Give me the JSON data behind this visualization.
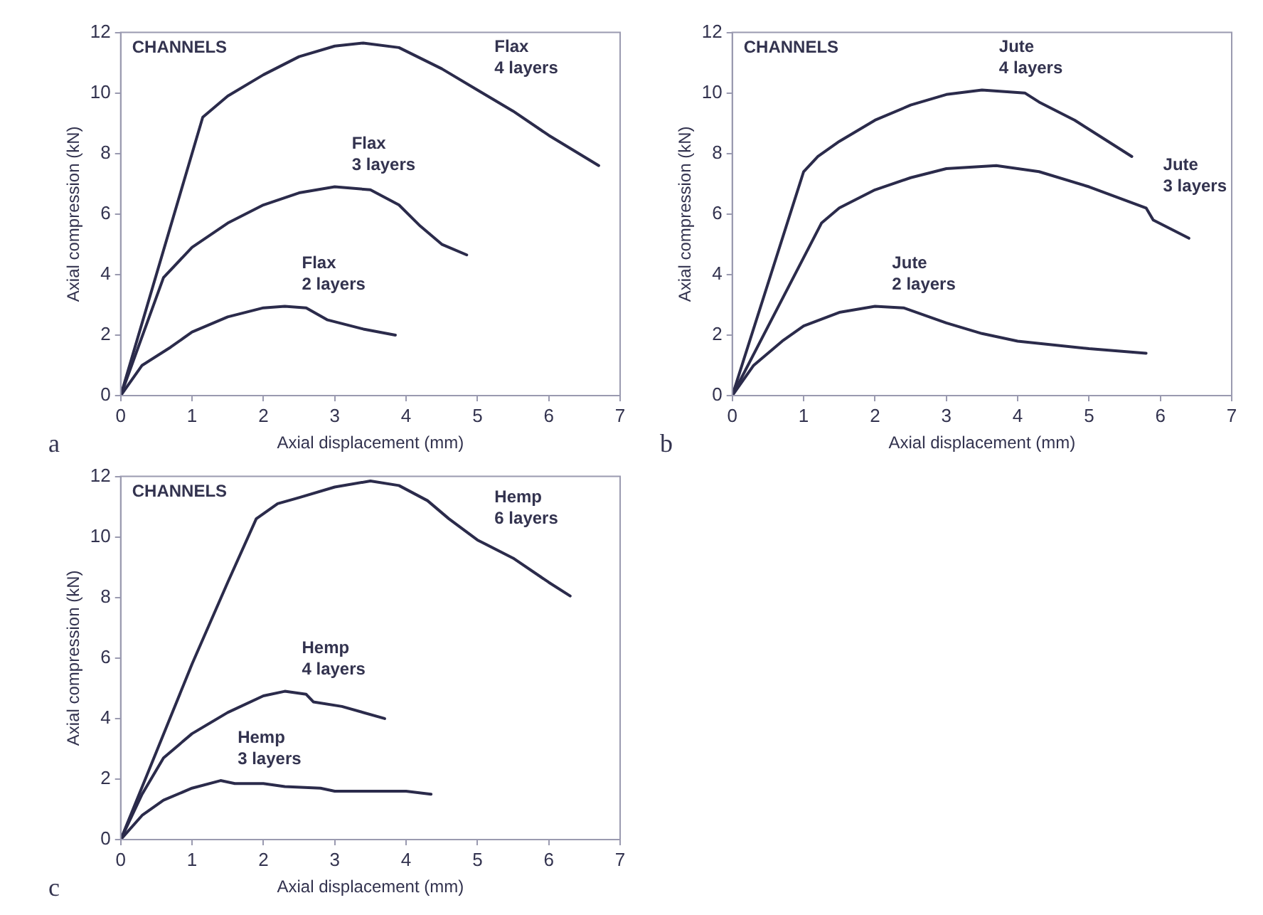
{
  "chart_data": [
    {
      "type": "line",
      "xlabel": "Axial displacement (mm)",
      "ylabel": "Axial compression (kN)",
      "xlim": [
        0,
        7
      ],
      "ylim": [
        0,
        12
      ],
      "xticks": [
        0,
        1,
        2,
        3,
        4,
        5,
        6,
        7
      ],
      "yticks": [
        0,
        2,
        4,
        6,
        8,
        10,
        12
      ],
      "grid": false,
      "legend": false,
      "marker": "none",
      "line_style": "solid",
      "annotations": [
        "CHANNELS",
        "a"
      ],
      "series": [
        {
          "name": "Flax 4 layers",
          "color": "#2b2b4b",
          "x": [
            0,
            1.15,
            1.5,
            2,
            2.5,
            3,
            3.4,
            3.9,
            4.5,
            5,
            5.5,
            6,
            6.7
          ],
          "values": [
            0,
            9.2,
            9.9,
            10.6,
            11.2,
            11.55,
            11.65,
            11.5,
            10.8,
            10.1,
            9.4,
            8.6,
            7.6
          ]
        },
        {
          "name": "Flax 3 layers",
          "color": "#2b2b4b",
          "x": [
            0,
            0.6,
            1,
            1.5,
            2,
            2.5,
            3,
            3.5,
            3.9,
            4.2,
            4.5,
            4.85
          ],
          "values": [
            0,
            3.9,
            4.9,
            5.7,
            6.3,
            6.7,
            6.9,
            6.8,
            6.3,
            5.6,
            5.0,
            4.65
          ]
        },
        {
          "name": "Flax 2 layers",
          "color": "#2b2b4b",
          "x": [
            0,
            0.3,
            0.7,
            1,
            1.5,
            2,
            2.3,
            2.6,
            2.9,
            3.4,
            3.85
          ],
          "values": [
            0,
            1.0,
            1.6,
            2.1,
            2.6,
            2.9,
            2.95,
            2.9,
            2.5,
            2.2,
            2.0
          ]
        }
      ]
    },
    {
      "type": "line",
      "xlabel": "Axial displacement (mm)",
      "ylabel": "Axial compression (kN)",
      "xlim": [
        0,
        7
      ],
      "ylim": [
        0,
        12
      ],
      "xticks": [
        0,
        1,
        2,
        3,
        4,
        5,
        6,
        7
      ],
      "yticks": [
        0,
        2,
        4,
        6,
        8,
        10,
        12
      ],
      "grid": false,
      "legend": false,
      "marker": "none",
      "line_style": "solid",
      "annotations": [
        "CHANNELS",
        "b"
      ],
      "series": [
        {
          "name": "Jute 4 layers",
          "color": "#2b2b4b",
          "x": [
            0,
            1,
            1.2,
            1.5,
            2,
            2.5,
            3,
            3.5,
            4.1,
            4.3,
            4.8,
            5.2,
            5.6
          ],
          "values": [
            0,
            7.4,
            7.9,
            8.4,
            9.1,
            9.6,
            9.95,
            10.1,
            10.0,
            9.7,
            9.1,
            8.5,
            7.9
          ]
        },
        {
          "name": "Jute 3 layers",
          "color": "#2b2b4b",
          "x": [
            0,
            1.25,
            1.5,
            2,
            2.5,
            3,
            3.7,
            4.3,
            5,
            5.8,
            5.9,
            6.4
          ],
          "values": [
            0,
            5.7,
            6.2,
            6.8,
            7.2,
            7.5,
            7.6,
            7.4,
            6.9,
            6.2,
            5.8,
            5.2
          ]
        },
        {
          "name": "Jute 2 layers",
          "color": "#2b2b4b",
          "x": [
            0,
            0.3,
            0.7,
            1,
            1.5,
            2,
            2.4,
            3,
            3.5,
            4,
            5,
            5.8
          ],
          "values": [
            0,
            1.0,
            1.8,
            2.3,
            2.75,
            2.95,
            2.9,
            2.4,
            2.05,
            1.8,
            1.55,
            1.4
          ]
        }
      ]
    },
    {
      "type": "line",
      "xlabel": "Axial displacement (mm)",
      "ylabel": "Axial compression (kN)",
      "xlim": [
        0,
        7
      ],
      "ylim": [
        0,
        12
      ],
      "xticks": [
        0,
        1,
        2,
        3,
        4,
        5,
        6,
        7
      ],
      "yticks": [
        0,
        2,
        4,
        6,
        8,
        10,
        12
      ],
      "grid": false,
      "legend": false,
      "marker": "none",
      "line_style": "solid",
      "annotations": [
        "CHANNELS",
        "c"
      ],
      "series": [
        {
          "name": "Hemp 6 layers",
          "color": "#2b2b4b",
          "x": [
            0,
            0.5,
            1,
            1.5,
            1.9,
            2.2,
            2.5,
            3,
            3.5,
            3.9,
            4.3,
            4.6,
            5,
            5.5,
            6,
            6.3
          ],
          "values": [
            0,
            2.9,
            5.8,
            8.5,
            10.6,
            11.1,
            11.3,
            11.65,
            11.85,
            11.7,
            11.2,
            10.6,
            9.9,
            9.3,
            8.5,
            8.05
          ]
        },
        {
          "name": "Hemp 4 layers",
          "color": "#2b2b4b",
          "x": [
            0,
            0.3,
            0.6,
            1,
            1.5,
            2,
            2.3,
            2.6,
            2.7,
            3.1,
            3.7
          ],
          "values": [
            0,
            1.5,
            2.7,
            3.5,
            4.2,
            4.75,
            4.9,
            4.8,
            4.55,
            4.4,
            4.0
          ]
        },
        {
          "name": "Hemp 3 layers",
          "color": "#2b2b4b",
          "x": [
            0,
            0.3,
            0.6,
            1,
            1.4,
            1.6,
            2,
            2.3,
            2.8,
            3,
            4,
            4.35
          ],
          "values": [
            0,
            0.8,
            1.3,
            1.7,
            1.95,
            1.85,
            1.85,
            1.75,
            1.7,
            1.6,
            1.6,
            1.5
          ]
        }
      ]
    }
  ]
}
